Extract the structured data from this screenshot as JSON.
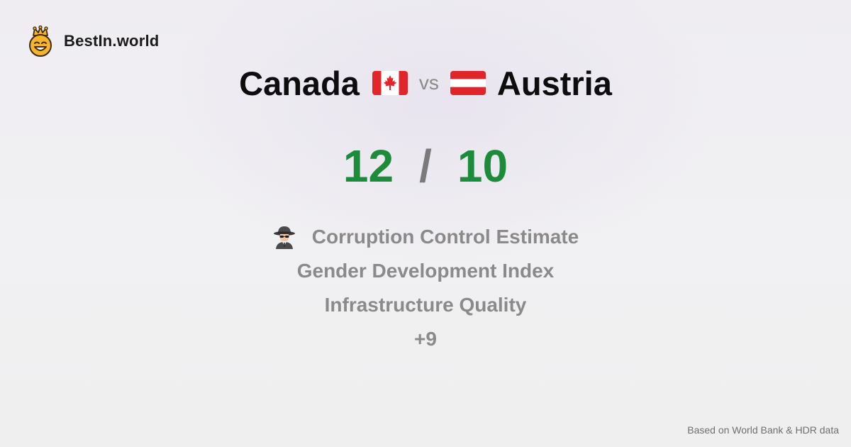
{
  "brand": {
    "name": "BestIn.world",
    "logo_icon": "crowned-smiley-face-icon",
    "logo_color": "#f7b32b"
  },
  "comparison": {
    "left_country": "Canada",
    "left_flag": "canada-flag-icon",
    "vs_label": "vs",
    "right_country": "Austria",
    "right_flag": "austria-flag-icon"
  },
  "score": {
    "left": "12",
    "separator": "/",
    "right": "10",
    "accent_color": "#1d8c3a"
  },
  "metrics": [
    {
      "label": "Corruption Control Estimate",
      "icon": "detective-icon"
    },
    {
      "label": "Gender Development Index"
    },
    {
      "label": "Infrastructure Quality"
    },
    {
      "label": "+9"
    }
  ],
  "footer": {
    "source": "Based on World Bank & HDR data"
  }
}
